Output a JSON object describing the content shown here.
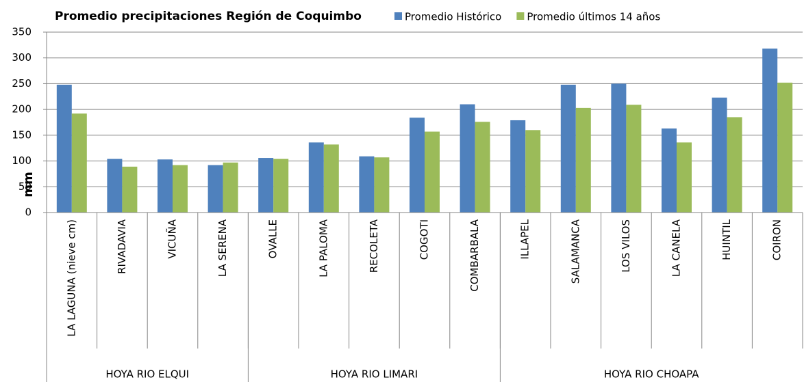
{
  "chart_data": {
    "type": "bar",
    "title": "Promedio precipitaciones Región de Coquimbo",
    "ylabel": "mm",
    "categories": [
      "LA LAGUNA (nieve cm)",
      "RIVADAVIA",
      "VICUÑA",
      "LA SERENA",
      "OVALLE",
      "LA PALOMA",
      "RECOLETA",
      "COGOTI",
      "COMBARBALA",
      "ILLAPEL",
      "SALAMANCA",
      "LOS VILOS",
      "LA CANELA",
      "HUINTIL",
      "COIRON"
    ],
    "groups": [
      {
        "label": "HOYA RIO ELQUI",
        "span": 4
      },
      {
        "label": "HOYA RIO LIMARI",
        "span": 5
      },
      {
        "label": "HOYA RIO CHOAPA",
        "span": 6
      }
    ],
    "series": [
      {
        "name": "Promedio Histórico",
        "color": "#4f81bd",
        "values": [
          248,
          104,
          103,
          92,
          106,
          136,
          109,
          184,
          210,
          179,
          248,
          250,
          163,
          223,
          318
        ]
      },
      {
        "name": "Promedio últimos 14 años",
        "color": "#9bbb59",
        "values": [
          192,
          89,
          92,
          97,
          104,
          132,
          107,
          157,
          176,
          160,
          203,
          209,
          136,
          185,
          252
        ]
      }
    ],
    "ylim": [
      0,
      350
    ],
    "yticks": [
      0,
      50,
      100,
      150,
      200,
      250,
      300,
      350
    ],
    "grid": true,
    "legend": "top"
  }
}
